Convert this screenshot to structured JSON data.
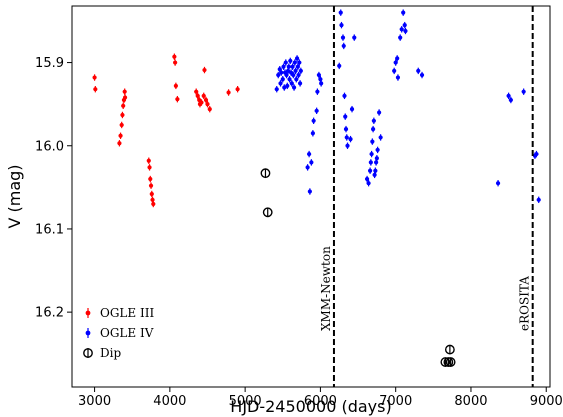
{
  "chart_data": {
    "type": "scatter",
    "xlabel": "HJD-2450000 (days)",
    "ylabel": "V (mag)",
    "xlim": [
      2700,
      9050
    ],
    "ylim": [
      16.29,
      15.832
    ],
    "y_inverted": true,
    "xticks": [
      3000,
      4000,
      5000,
      6000,
      7000,
      8000,
      9000
    ],
    "yticks": [
      15.9,
      16.0,
      16.1,
      16.2
    ],
    "ytick_labels": [
      "15.9",
      "16.0",
      "16.1",
      "16.2"
    ],
    "legend_position": "lower-left",
    "series": [
      {
        "name": "OGLE III",
        "color": "#ff0000",
        "marker": "point-with-errorbar",
        "x": [
          3000,
          3010,
          3330,
          3345,
          3360,
          3370,
          3380,
          3390,
          3400,
          3405,
          3720,
          3730,
          3740,
          3750,
          3760,
          3770,
          3780,
          4060,
          4070,
          4080,
          4100,
          4350,
          4370,
          4390,
          4400,
          4420,
          4450,
          4460,
          4480,
          4500,
          4530,
          4780,
          4900
        ],
        "y": [
          15.918,
          15.932,
          15.997,
          15.988,
          15.975,
          15.963,
          15.952,
          15.945,
          15.935,
          15.942,
          16.018,
          16.026,
          16.04,
          16.048,
          16.058,
          16.065,
          16.07,
          15.893,
          15.9,
          15.928,
          15.944,
          15.935,
          15.94,
          15.945,
          15.95,
          15.948,
          15.94,
          15.909,
          15.945,
          15.95,
          15.956,
          15.936,
          15.932
        ]
      },
      {
        "name": "OGLE IV",
        "color": "#0000ff",
        "marker": "point-with-errorbar",
        "x": [
          5420,
          5440,
          5460,
          5470,
          5480,
          5500,
          5510,
          5520,
          5530,
          5540,
          5550,
          5560,
          5570,
          5580,
          5590,
          5600,
          5610,
          5620,
          5630,
          5640,
          5650,
          5660,
          5670,
          5680,
          5690,
          5700,
          5710,
          5720,
          5730,
          5740,
          5830,
          5850,
          5860,
          5880,
          5900,
          5910,
          5950,
          5960,
          5980,
          6000,
          6010,
          6250,
          6270,
          6280,
          6300,
          6310,
          6320,
          6330,
          6340,
          6350,
          6360,
          6400,
          6420,
          6450,
          6620,
          6640,
          6660,
          6670,
          6680,
          6690,
          6700,
          6710,
          6720,
          6730,
          6740,
          6750,
          6760,
          6780,
          6800,
          6980,
          7000,
          7020,
          7030,
          7060,
          7080,
          7100,
          7120,
          7130,
          7300,
          7350,
          8360,
          8500,
          8530,
          8700,
          8850,
          8870,
          8900
        ],
        "y": [
          15.932,
          15.915,
          15.908,
          15.925,
          15.912,
          15.92,
          15.905,
          15.93,
          15.912,
          15.9,
          15.915,
          15.928,
          15.91,
          15.905,
          15.92,
          15.898,
          15.912,
          15.925,
          15.905,
          15.915,
          15.93,
          15.9,
          15.91,
          15.92,
          15.895,
          15.905,
          15.915,
          15.9,
          15.925,
          15.91,
          16.026,
          16.01,
          16.055,
          16.02,
          15.985,
          15.97,
          15.958,
          15.935,
          15.915,
          15.92,
          15.925,
          15.904,
          15.84,
          15.855,
          15.87,
          15.88,
          15.94,
          15.965,
          15.98,
          15.99,
          16.0,
          15.992,
          15.956,
          15.87,
          16.04,
          16.045,
          16.03,
          16.02,
          16.01,
          15.995,
          15.98,
          15.97,
          16.035,
          16.03,
          16.02,
          16.015,
          16.005,
          15.96,
          15.99,
          15.91,
          15.9,
          15.895,
          15.918,
          15.87,
          15.86,
          15.84,
          15.855,
          15.862,
          15.91,
          15.915,
          16.045,
          15.94,
          15.945,
          15.935,
          16.012,
          16.01,
          16.065
        ]
      },
      {
        "name": "Dip",
        "color": "#000000",
        "marker": "open-circle-with-errorbar",
        "x": [
          5270,
          5300,
          7660,
          7700,
          7720,
          7730
        ],
        "y": [
          16.033,
          16.08,
          16.26,
          16.26,
          16.245,
          16.26
        ]
      }
    ],
    "vlines": [
      {
        "x": 6180,
        "label": "XMM-Newton",
        "style": "dashed"
      },
      {
        "x": 8820,
        "label": "eROSITA",
        "style": "dashed"
      }
    ]
  }
}
